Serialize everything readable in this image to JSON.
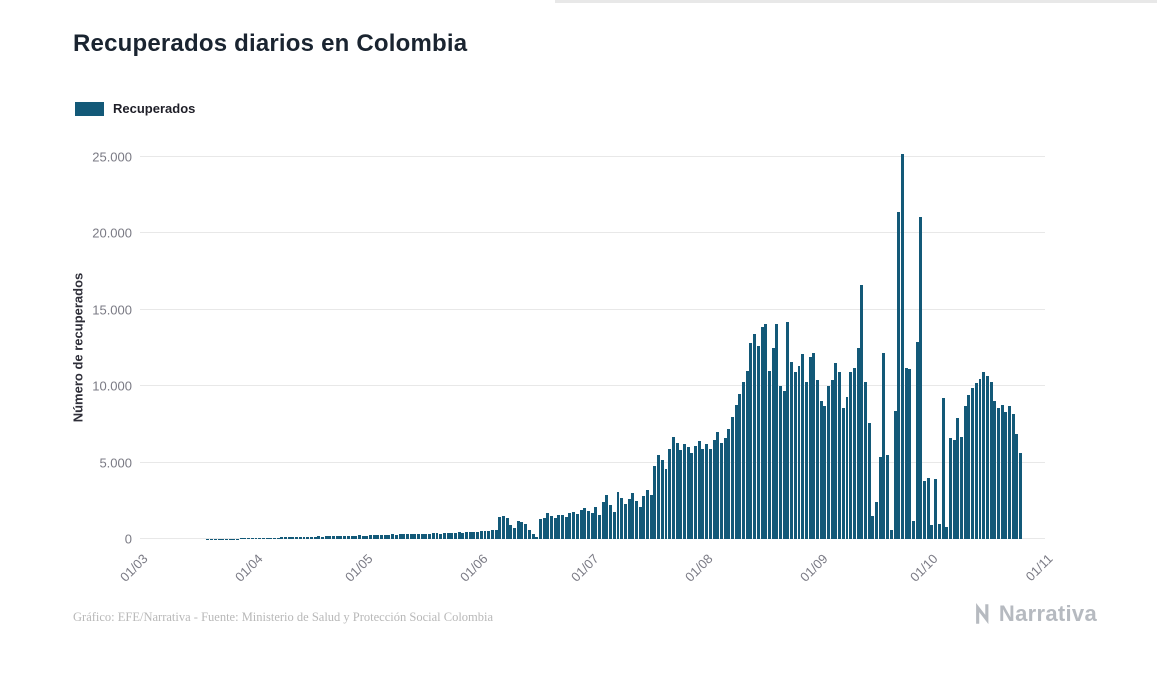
{
  "title": "Recuperados diarios en Colombia",
  "legend": {
    "label": "Recuperados",
    "color": "#135978"
  },
  "footer": {
    "credit": "Gráfico: EFE/Narrativa - Fuente: Ministerio de Salud y Protección Social Colombia"
  },
  "logo": {
    "text": "Narrativa"
  },
  "chart_data": {
    "type": "bar",
    "title": "Recuperados diarios en Colombia",
    "xlabel": "",
    "ylabel": "Número de recuperados",
    "ylim": [
      0,
      25000
    ],
    "yticks": [
      0,
      5000,
      10000,
      15000,
      20000,
      25000
    ],
    "ytick_labels": [
      "0",
      "5.000",
      "10.000",
      "15.000",
      "20.000",
      "25.000"
    ],
    "xtick_labels": [
      "01/03",
      "01/04",
      "01/05",
      "01/06",
      "01/07",
      "01/08",
      "01/09",
      "01/10",
      "01/11"
    ],
    "xtick_day_index": [
      0,
      31,
      61,
      92,
      122,
      153,
      184,
      214,
      245
    ],
    "total_days_span": 245,
    "grid": "horizontal",
    "legend_position": "top-left",
    "series": [
      {
        "name": "Recuperados",
        "color": "#135978",
        "start_label": "01/03",
        "frequency": "daily",
        "values": [
          0,
          0,
          0,
          0,
          0,
          0,
          0,
          0,
          0,
          0,
          1,
          1,
          2,
          2,
          3,
          3,
          4,
          5,
          6,
          8,
          10,
          12,
          15,
          18,
          20,
          25,
          30,
          35,
          40,
          45,
          50,
          55,
          60,
          70,
          65,
          80,
          90,
          85,
          100,
          110,
          100,
          120,
          130,
          120,
          140,
          150,
          140,
          160,
          170,
          160,
          180,
          190,
          180,
          200,
          190,
          210,
          220,
          200,
          230,
          240,
          220,
          230,
          250,
          240,
          260,
          280,
          260,
          290,
          300,
          280,
          310,
          320,
          300,
          330,
          340,
          320,
          350,
          360,
          340,
          370,
          380,
          360,
          390,
          400,
          380,
          410,
          430,
          400,
          440,
          460,
          430,
          470,
          500,
          550,
          520,
          580,
          620,
          1450,
          1500,
          1380,
          900,
          750,
          1200,
          1100,
          950,
          600,
          300,
          150,
          1300,
          1350,
          1700,
          1500,
          1400,
          1600,
          1550,
          1450,
          1700,
          1800,
          1650,
          1900,
          2000,
          1850,
          1700,
          2100,
          1600,
          2400,
          2900,
          2200,
          1800,
          3100,
          2700,
          2300,
          2600,
          3000,
          2500,
          2100,
          2800,
          3200,
          2900,
          4800,
          5500,
          5200,
          4600,
          5900,
          6700,
          6300,
          5800,
          6200,
          6000,
          5600,
          6100,
          6400,
          5900,
          6200,
          5900,
          6500,
          7000,
          6300,
          6600,
          7200,
          8000,
          8800,
          9500,
          10300,
          11000,
          12800,
          13400,
          12600,
          13900,
          14100,
          11000,
          12500,
          14100,
          10000,
          9700,
          14200,
          11600,
          10900,
          11300,
          12100,
          10300,
          11900,
          12200,
          10400,
          9000,
          8700,
          10000,
          10400,
          11500,
          10900,
          8600,
          9300,
          10900,
          11200,
          12500,
          16600,
          10300,
          7600,
          1500,
          2400,
          5400,
          12200,
          5500,
          600,
          8400,
          21400,
          25200,
          11200,
          11100,
          1200,
          12900,
          21100,
          3800,
          4000,
          900,
          3900,
          1000,
          9200,
          800,
          6600,
          6500,
          7900,
          6700,
          8700,
          9400,
          9900,
          10200,
          10500,
          10900,
          10700,
          10300,
          9000,
          8600,
          8800,
          8300,
          8700,
          8200,
          6900,
          5600
        ]
      }
    ]
  }
}
